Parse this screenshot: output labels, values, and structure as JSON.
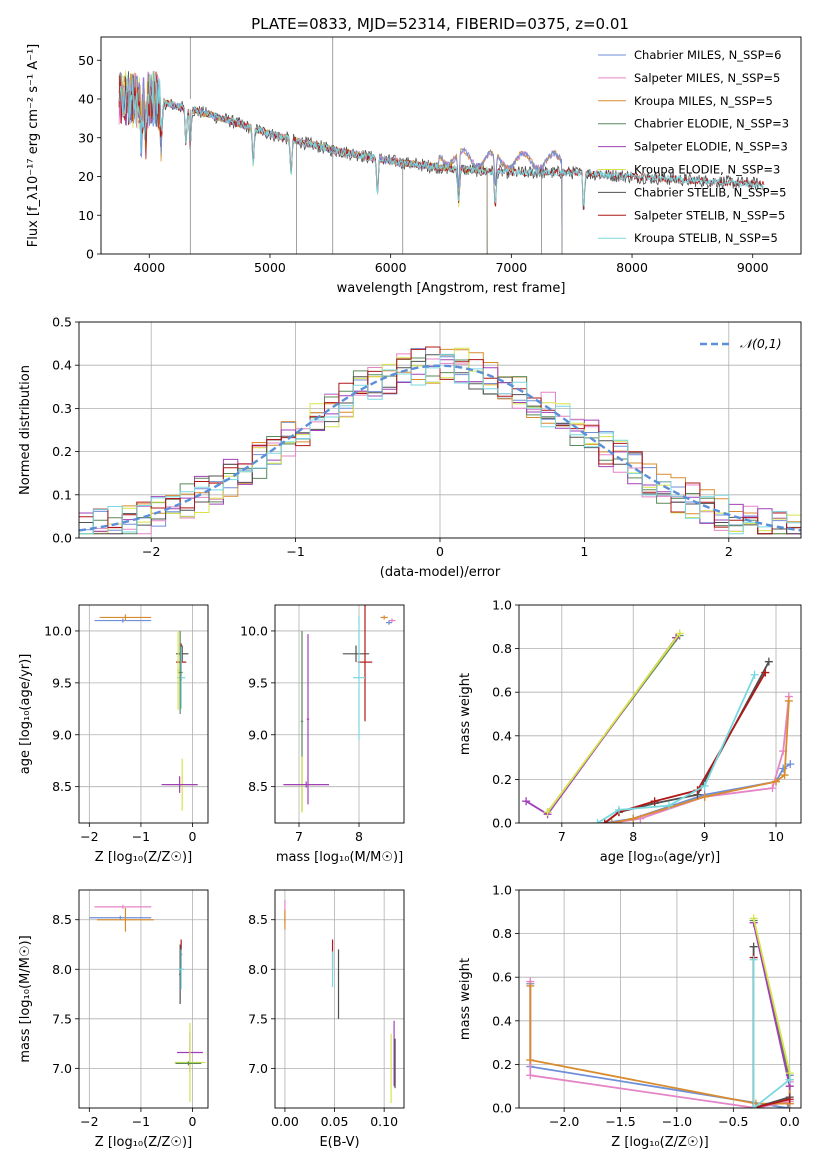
{
  "figure": {
    "title": "PLATE=0833, MJD=52314, FIBERID=0375, z=0.01"
  },
  "models": [
    {
      "name": "Chabrier MILES",
      "n_ssp": 6,
      "color": "#6f8fd8"
    },
    {
      "name": "Salpeter MILES",
      "n_ssp": 5,
      "color": "#e584c7"
    },
    {
      "name": "Kroupa MILES",
      "n_ssp": 5,
      "color": "#d98c2e"
    },
    {
      "name": "Chabrier ELODIE",
      "n_ssp": 3,
      "color": "#5a8a5a"
    },
    {
      "name": "Salpeter ELODIE",
      "n_ssp": 3,
      "color": "#a040b8"
    },
    {
      "name": "Kroupa ELODIE",
      "n_ssp": 3,
      "color": "#d6e44a"
    },
    {
      "name": "Chabrier STELIB",
      "n_ssp": 5,
      "color": "#505050"
    },
    {
      "name": "Salpeter STELIB",
      "n_ssp": 5,
      "color": "#b01818"
    },
    {
      "name": "Kroupa STELIB",
      "n_ssp": 5,
      "color": "#78d8e0"
    }
  ],
  "chart_data": [
    {
      "id": "spectrum",
      "type": "line",
      "xlabel": "wavelength [Angstrom, rest frame]",
      "ylabel": "Flux [f_λ10⁻¹⁷ erg cm⁻² s⁻¹ A⁻¹]",
      "xlim": [
        3600,
        9400
      ],
      "ylim": [
        0,
        56
      ],
      "xticks": [
        4000,
        5000,
        6000,
        7000,
        8000,
        9000
      ],
      "yticks": [
        0,
        10,
        20,
        30,
        40,
        50
      ],
      "legend": "top-right",
      "legend_labels": [
        "Chabrier MILES, N_SSP=6",
        "Salpeter MILES, N_SSP=5",
        "Kroupa MILES, N_SSP=5",
        "Chabrier ELODIE, N_SSP=3",
        "Salpeter ELODIE, N_SSP=3",
        "Kroupa ELODIE, N_SSP=3",
        "Chabrier STELIB, N_SSP=5",
        "Salpeter STELIB, N_SSP=5",
        "Kroupa STELIB, N_SSP=5"
      ],
      "continuum": {
        "x": [
          3750,
          4000,
          4500,
          5000,
          5500,
          6000,
          6500,
          7000,
          7500,
          8000,
          8500,
          9100
        ],
        "y": [
          40,
          40,
          36,
          31,
          27,
          24,
          22,
          21,
          21,
          20,
          19,
          18
        ]
      },
      "absorption_lines": [
        3934,
        3969,
        4101,
        4304,
        4340,
        4861,
        5175,
        5890,
        6563,
        6867,
        7600
      ],
      "spikes": [
        4340,
        5220,
        5520,
        6100,
        6800,
        7250,
        7420
      ],
      "model_ranges": {
        "MILES": [
          3750,
          7420
        ],
        "ELODIE": [
          3750,
          6800
        ],
        "STELIB": [
          3750,
          9100
        ]
      },
      "grid": false
    },
    {
      "id": "residuals",
      "type": "bar",
      "xlabel": "(data-model)/error",
      "ylabel": "Normed distribution",
      "xlim": [
        -2.5,
        2.5
      ],
      "ylim": [
        0,
        0.5
      ],
      "xticks": [
        -2,
        -1,
        0,
        1,
        2
      ],
      "yticks": [
        0.0,
        0.1,
        0.2,
        0.3,
        0.4,
        0.5
      ],
      "bin_width": 0.1,
      "reference": {
        "name": "𝒩(0,1)",
        "mu": 0,
        "sigma": 1,
        "color": "#5b8fd8"
      },
      "legend": "top-right",
      "grid": true
    },
    {
      "id": "age-vs-Z",
      "type": "scatter",
      "xlabel": "Z [log₁₀(Z/Z☉)]",
      "ylabel": "age  [log₁₀(age/yr)]",
      "xlim": [
        -2.2,
        0.3
      ],
      "ylim": [
        8.15,
        10.25
      ],
      "xticks": [
        -2,
        -1,
        0
      ],
      "yticks": [
        8.5,
        9.0,
        9.5,
        10.0
      ],
      "points": [
        {
          "model": 0,
          "x": -1.35,
          "y": 10.1,
          "xerr": 0.55,
          "yerr": 0.02
        },
        {
          "model": 2,
          "x": -1.3,
          "y": 10.13,
          "xerr": 0.5,
          "yerr": 0.03
        },
        {
          "model": 6,
          "x": -0.2,
          "y": 9.78,
          "xerr": 0.12,
          "yerr": 0.08
        },
        {
          "model": 7,
          "x": -0.22,
          "y": 9.7,
          "xerr": 0.1,
          "yerr": 0.18
        },
        {
          "model": 8,
          "x": -0.22,
          "y": 9.55,
          "xerr": 0.08,
          "yerr": 0.3
        },
        {
          "model": 3,
          "x": -0.24,
          "y": 9.6,
          "xerr": 0.05,
          "yerr": 0.4
        },
        {
          "model": 5,
          "x": -0.2,
          "y": 8.52,
          "xerr": 0.3,
          "yerr": 0.25
        },
        {
          "model": 4,
          "x": -0.25,
          "y": 8.52,
          "xerr": 0.35,
          "yerr": 0.08
        },
        {
          "model": 5,
          "x": -0.28,
          "y": 9.62,
          "xerr": 0.02,
          "yerr": 0.38
        }
      ],
      "grid": true
    },
    {
      "id": "age-vs-mass",
      "type": "scatter",
      "xlabel": "mass [log₁₀(M/M☉)]",
      "ylabel": "",
      "xlim": [
        6.6,
        8.75
      ],
      "ylim": [
        8.15,
        10.25
      ],
      "xticks": [
        7,
        8
      ],
      "yticks": [
        8.5,
        9.0,
        9.5,
        10.0
      ],
      "points": [
        {
          "model": 2,
          "x": 8.42,
          "y": 10.13,
          "xerr": 0.06,
          "yerr": 0.02
        },
        {
          "model": 1,
          "x": 8.55,
          "y": 10.1,
          "xerr": 0.06,
          "yerr": 0.02
        },
        {
          "model": 0,
          "x": 8.5,
          "y": 10.08,
          "xerr": 0.05,
          "yerr": 0.02
        },
        {
          "model": 6,
          "x": 7.95,
          "y": 9.78,
          "xerr": 0.22,
          "yerr": 0.08
        },
        {
          "model": 7,
          "x": 8.1,
          "y": 9.7,
          "xerr": 0.12,
          "yerr": 0.57
        },
        {
          "model": 8,
          "x": 8.0,
          "y": 9.55,
          "xerr": 0.1,
          "yerr": 0.6
        },
        {
          "model": 3,
          "x": 7.05,
          "y": 9.13,
          "xerr": 0.02,
          "yerr": 0.87
        },
        {
          "model": 4,
          "x": 7.15,
          "y": 9.15,
          "xerr": 0.02,
          "yerr": 0.82
        },
        {
          "model": 5,
          "x": 7.05,
          "y": 8.52,
          "xerr": 0.3,
          "yerr": 0.27
        },
        {
          "model": 4,
          "x": 7.12,
          "y": 8.52,
          "xerr": 0.38,
          "yerr": 0.03
        }
      ],
      "grid": true
    },
    {
      "id": "mass-weight-vs-age",
      "type": "line",
      "xlabel": "age  [log₁₀(age/yr)]",
      "ylabel": "mass weight",
      "xlim": [
        6.4,
        10.35
      ],
      "ylim": [
        0,
        1
      ],
      "xticks": [
        7,
        8,
        9,
        10
      ],
      "yticks": [
        0.0,
        0.2,
        0.4,
        0.6,
        0.8,
        1.0
      ],
      "series": [
        {
          "model": 0,
          "x": [
            7.6,
            8.0,
            9.0,
            10.0,
            10.1,
            10.2
          ],
          "y": [
            0.0,
            0.02,
            0.13,
            0.19,
            0.25,
            0.27
          ]
        },
        {
          "model": 1,
          "x": [
            7.7,
            8.1,
            9.0,
            9.95,
            10.1,
            10.18
          ],
          "y": [
            0.0,
            0.02,
            0.12,
            0.16,
            0.33,
            0.58
          ]
        },
        {
          "model": 2,
          "x": [
            7.7,
            8.0,
            9.0,
            10.0,
            10.12,
            10.18
          ],
          "y": [
            0.0,
            0.02,
            0.12,
            0.19,
            0.22,
            0.56
          ]
        },
        {
          "model": 3,
          "x": [
            6.8,
            8.65
          ],
          "y": [
            0.05,
            0.86
          ]
        },
        {
          "model": 4,
          "x": [
            6.5,
            6.8,
            8.6
          ],
          "y": [
            0.1,
            0.04,
            0.85
          ]
        },
        {
          "model": 5,
          "x": [
            6.8,
            8.65
          ],
          "y": [
            0.05,
            0.87
          ]
        },
        {
          "model": 6,
          "x": [
            7.6,
            7.8,
            8.3,
            8.9,
            9.9
          ],
          "y": [
            0.0,
            0.05,
            0.09,
            0.13,
            0.74
          ]
        },
        {
          "model": 7,
          "x": [
            7.6,
            7.8,
            8.3,
            8.9,
            9.85
          ],
          "y": [
            0.0,
            0.05,
            0.1,
            0.15,
            0.69
          ]
        },
        {
          "model": 8,
          "x": [
            7.5,
            7.8,
            8.5,
            9.0,
            9.7
          ],
          "y": [
            0.0,
            0.06,
            0.08,
            0.17,
            0.68
          ]
        }
      ],
      "grid": true
    },
    {
      "id": "mass-vs-Z",
      "type": "scatter",
      "xlabel": "Z [log₁₀(Z/Z☉)]",
      "ylabel": "mass [log₁₀(M/M☉)]",
      "xlim": [
        -2.2,
        0.3
      ],
      "ylim": [
        6.6,
        8.8
      ],
      "xticks": [
        -2,
        -1,
        0
      ],
      "yticks": [
        7.0,
        7.5,
        8.0,
        8.5
      ],
      "points": [
        {
          "model": 1,
          "x": -1.35,
          "y": 8.63,
          "xerr": 0.55,
          "yerr": 0.02
        },
        {
          "model": 0,
          "x": -1.4,
          "y": 8.52,
          "xerr": 0.6,
          "yerr": 0.02
        },
        {
          "model": 2,
          "x": -1.3,
          "y": 8.5,
          "xerr": 0.55,
          "yerr": 0.12
        },
        {
          "model": 7,
          "x": -0.22,
          "y": 8.15,
          "xerr": 0.02,
          "yerr": 0.15
        },
        {
          "model": 6,
          "x": -0.24,
          "y": 7.95,
          "xerr": 0.02,
          "yerr": 0.3
        },
        {
          "model": 8,
          "x": -0.22,
          "y": 8.0,
          "xerr": 0.06,
          "yerr": 0.2
        },
        {
          "model": 4,
          "x": -0.05,
          "y": 7.16,
          "xerr": 0.25,
          "yerr": 0.2
        },
        {
          "model": 5,
          "x": -0.05,
          "y": 7.06,
          "xerr": 0.3,
          "yerr": 0.4
        },
        {
          "model": 3,
          "x": -0.08,
          "y": 7.05,
          "xerr": 0.25,
          "yerr": 0.02
        }
      ],
      "grid": true
    },
    {
      "id": "mass-vs-EBV",
      "type": "scatter",
      "xlabel": "E(B-V)",
      "ylabel": "",
      "xlim": [
        -0.01,
        0.12
      ],
      "ylim": [
        6.6,
        8.8
      ],
      "xticks": [
        0.0,
        0.05,
        0.1
      ],
      "yticks": [
        7.0,
        7.5,
        8.0,
        8.5
      ],
      "points": [
        {
          "model": 1,
          "x": 0.0,
          "y": 8.58,
          "xerr": 0.0,
          "yerr": 0.12
        },
        {
          "model": 2,
          "x": 0.0,
          "y": 8.5,
          "xerr": 0.0,
          "yerr": 0.1
        },
        {
          "model": 7,
          "x": 0.048,
          "y": 8.15,
          "xerr": 0.0,
          "yerr": 0.15
        },
        {
          "model": 8,
          "x": 0.048,
          "y": 8.0,
          "xerr": 0.0,
          "yerr": 0.18
        },
        {
          "model": 6,
          "x": 0.054,
          "y": 7.85,
          "xerr": 0.0,
          "yerr": 0.35
        },
        {
          "model": 5,
          "x": 0.107,
          "y": 7.0,
          "xerr": 0.0,
          "yerr": 0.35
        },
        {
          "model": 4,
          "x": 0.11,
          "y": 7.15,
          "xerr": 0.0,
          "yerr": 0.33
        },
        {
          "model": 6,
          "x": 0.111,
          "y": 7.05,
          "xerr": 0.0,
          "yerr": 0.25
        }
      ],
      "grid": true
    },
    {
      "id": "mass-weight-vs-Z",
      "type": "line",
      "xlabel": "Z [log₁₀(Z/Z☉)]",
      "ylabel": "mass weight",
      "xlim": [
        -2.4,
        0.1
      ],
      "ylim": [
        0,
        1
      ],
      "xticks": [
        -2.0,
        -1.5,
        -1.0,
        -0.5,
        0.0
      ],
      "yticks": [
        0.0,
        0.2,
        0.4,
        0.6,
        0.8,
        1.0
      ],
      "series": [
        {
          "model": 0,
          "x": [
            -2.3,
            -2.3,
            -0.02,
            0.0,
            0.0
          ],
          "y": [
            0.57,
            0.19,
            0.0,
            0.02,
            0.15
          ]
        },
        {
          "model": 1,
          "x": [
            -2.3,
            -2.3,
            -0.3,
            0.0,
            0.0
          ],
          "y": [
            0.58,
            0.15,
            0.0,
            0.03,
            0.12
          ]
        },
        {
          "model": 2,
          "x": [
            -2.3,
            -2.3,
            -0.3,
            0.0,
            0.0
          ],
          "y": [
            0.56,
            0.22,
            0.02,
            0.02,
            0.1
          ]
        },
        {
          "model": 3,
          "x": [
            -0.32,
            0.0
          ],
          "y": [
            0.86,
            0.13
          ]
        },
        {
          "model": 4,
          "x": [
            -0.32,
            0.0
          ],
          "y": [
            0.85,
            0.1
          ]
        },
        {
          "model": 5,
          "x": [
            -0.32,
            0.0
          ],
          "y": [
            0.87,
            0.16
          ]
        },
        {
          "model": 6,
          "x": [
            -0.32,
            -0.32,
            0.0
          ],
          "y": [
            0.74,
            0.0,
            0.05
          ]
        },
        {
          "model": 7,
          "x": [
            -0.32,
            -0.32,
            0.0
          ],
          "y": [
            0.69,
            0.0,
            0.04
          ]
        },
        {
          "model": 8,
          "x": [
            -0.32,
            -0.32,
            0.0
          ],
          "y": [
            0.68,
            0.0,
            0.13
          ]
        }
      ],
      "grid": true
    }
  ]
}
